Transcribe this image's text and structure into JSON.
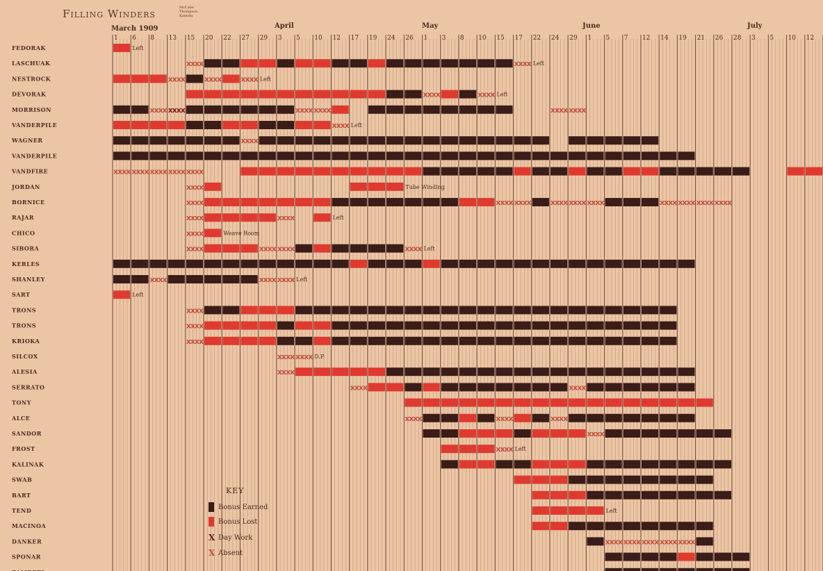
{
  "title": "Filling Winders",
  "subtitle_lines": [
    "McCabe",
    "Thompson",
    "Kanisky"
  ],
  "colors": {
    "background": "#ecc5a4",
    "earned": "#3a1c18",
    "lost": "#df3a30",
    "day_work": "#7a1e1c",
    "grid": "#5b3b2e",
    "text": "#4a2a20"
  },
  "chart_data": {
    "type": "gantt",
    "title": "Filling Winders",
    "x_axis": {
      "months": [
        "March 1909",
        "April",
        "May",
        "June",
        "July"
      ],
      "day_ticks": [
        "1",
        "6",
        "8",
        "13",
        "15",
        "20",
        "22",
        "27",
        "29",
        "3",
        "5",
        "10",
        "12",
        "17",
        "19",
        "24",
        "26",
        "1",
        "3",
        "8",
        "10",
        "15",
        "17",
        "22",
        "24",
        "29",
        "1",
        "5",
        "7",
        "12",
        "14",
        "19",
        "21",
        "26",
        "28",
        "3",
        "5",
        "10",
        "12"
      ]
    },
    "legend": [
      {
        "code": "E",
        "label": "Bonus Earned"
      },
      {
        "code": "L",
        "label": "Bonus Lost"
      },
      {
        "code": "D",
        "label": "Day Work"
      },
      {
        "code": "A",
        "label": "Absent"
      }
    ],
    "workers": [
      {
        "name": "Fedorak",
        "cells": "L",
        "note": "Left"
      },
      {
        "name": "Laschuak",
        "cells": "....AEELLELLEELEEEEEEEA",
        "note": "Left"
      },
      {
        "name": "Nestrock",
        "cells": "LLLAEALA",
        "note": "Left"
      },
      {
        "name": "Devorak",
        "cells": "....LLLLLLLLLLLEEALEA",
        "note": "Left"
      },
      {
        "name": "Morrison",
        "cells": "EEADEEEEEEAAL.EEEEEEEE..AA"
      },
      {
        "name": "Vanderpile",
        "cells": "LLLLEELLEELLA",
        "note": "Left"
      },
      {
        "name": "Wagner",
        "cells": "EEEEEEEAEEEEEEEEEEEEEEEE.EEEEE"
      },
      {
        "name": "Vanderpile",
        "cells": "EEEEEEEEEEEEEEEEEEEEEEEEEEEEEEEE"
      },
      {
        "name": "Vandfire",
        "cells": "AAAAA..LLLLLLLLLLEEEEELEELEELLEEEEE..LL"
      },
      {
        "name": "Jordan",
        "cells": "....AL.......LLL",
        "note": "Tube Winding"
      },
      {
        "name": "Bornice",
        "cells": "....ALLLLLLLEEEEEEELLAAEAAAEEEAAAA"
      },
      {
        "name": "Rajar",
        "cells": "....ALLLLA.L",
        "note": "Left"
      },
      {
        "name": "Chico",
        "cells": "....AL",
        "note": "Weave Room"
      },
      {
        "name": "Sibora",
        "cells": "....ALLLAAELEEEEA",
        "note": "Left"
      },
      {
        "name": "Kerles",
        "cells": "EEEEEEEEEEEEELEEELEEEEEEEEEEEEEE"
      },
      {
        "name": "Shanley",
        "cells": "EEAEEEEEAA",
        "note": "Left"
      },
      {
        "name": "Sart",
        "cells": "L",
        "note": "Left"
      },
      {
        "name": "Trons",
        "cells": "....AEELLLEEEEEEEEEEEEEEEEEEEEE"
      },
      {
        "name": "Trons",
        "cells": "....ALLLLELLEEEEEEEEEEEEEEEEEEE"
      },
      {
        "name": "Krioka",
        "cells": "....ALLLLEELEEEEEEEEEEEEEEEEEEE"
      },
      {
        "name": "Silcox",
        "cells": ".........AA",
        "note": "D.P."
      },
      {
        "name": "Alesia",
        "cells": ".........ALLLLLEEEEEEEEEEEEEEEEE"
      },
      {
        "name": "Serrato",
        "cells": ".............ALLELEEEEEEEAEEEEEE"
      },
      {
        "name": "Tony",
        "cells": "................LLLLLLLLLLLLLLLLL"
      },
      {
        "name": "Alce",
        "cells": "................AEELEALEAEEEEEEE"
      },
      {
        "name": "Sandor",
        "cells": ".................EELLLELLLAEEEEEEE"
      },
      {
        "name": "Frost",
        "cells": "..................LLLA",
        "note": "Left"
      },
      {
        "name": "Kalinak",
        "cells": "..................ELLEELLLEEEEEEEE"
      },
      {
        "name": "Swab",
        "cells": "......................LLLEEEEEEEE"
      },
      {
        "name": "Bart",
        "cells": ".......................LLLEEEEEEEE"
      },
      {
        "name": "Tend",
        "cells": ".......................LLLL",
        "note": "Left"
      },
      {
        "name": "Macinoa",
        "cells": ".......................LLEEEEEEEE"
      },
      {
        "name": "Danker",
        "cells": "..........................EAAAAAE"
      },
      {
        "name": "Sponar",
        "cells": "...........................EEEELEEE"
      },
      {
        "name": "Zambeti",
        "cells": "...........................EEEEEEEE"
      }
    ]
  }
}
